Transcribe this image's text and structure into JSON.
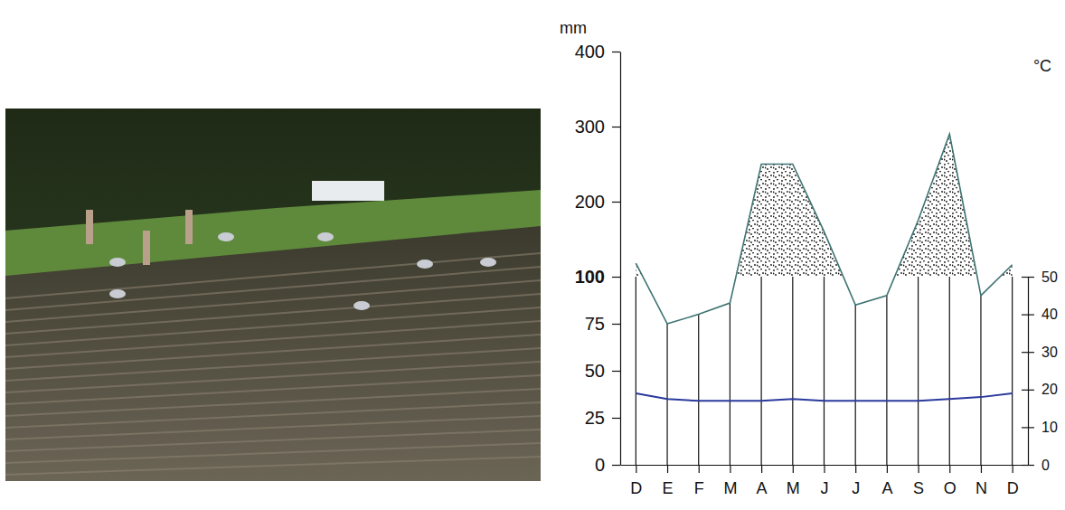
{
  "chart_data": {
    "type": "line",
    "y_label": "mm",
    "y2_label": "°C",
    "categories": [
      "D",
      "E",
      "F",
      "M",
      "A",
      "M",
      "J",
      "J",
      "A",
      "S",
      "O",
      "N",
      "D"
    ],
    "series": [
      {
        "type": "line",
        "color": "#3f7373",
        "values": [
          118,
          75,
          80,
          86,
          250,
          250,
          160,
          85,
          90,
          175,
          290,
          90,
          116
        ]
      },
      {
        "type": "line",
        "color": "#2b3a9c",
        "axis": "y2",
        "values": [
          19,
          17.5,
          17,
          17,
          17,
          17.5,
          17,
          17,
          17,
          17,
          17.5,
          18,
          19
        ]
      }
    ],
    "ylim": [
      0,
      400
    ],
    "yticks": [
      0,
      25,
      50,
      75,
      100,
      200,
      300,
      400
    ],
    "y2lim": [
      0,
      50
    ],
    "y2ticks": [
      0,
      10,
      20,
      30,
      40,
      50
    ],
    "grid": false
  }
}
